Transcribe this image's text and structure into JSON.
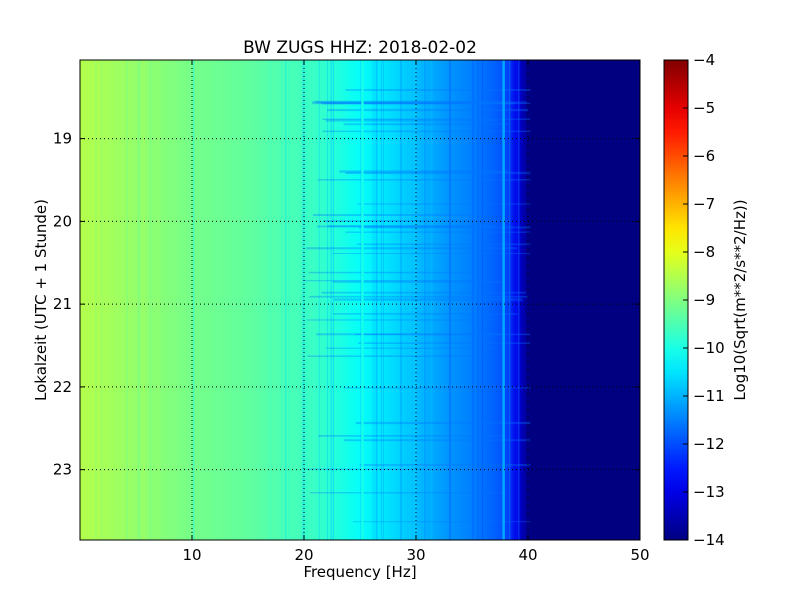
{
  "chart_data": {
    "type": "heatmap",
    "title": "BW ZUGS HHZ: 2018-02-02",
    "xlabel": "Frequency [Hz]",
    "ylabel": "Lokalzeit (UTC + 1 Stunde)",
    "xlim": [
      0,
      50
    ],
    "ylim_hours": [
      18.05,
      23.85
    ],
    "y_inverted": true,
    "x_ticks": [
      10,
      20,
      30,
      40,
      50
    ],
    "y_ticks": [
      19,
      20,
      21,
      22,
      23
    ],
    "grid": true,
    "colormap": "jet",
    "colorbar": {
      "label": "Log10(Sqrt(m**2/s**2/Hz))",
      "min": -14,
      "max": -4,
      "ticks": [
        -4,
        -5,
        -6,
        -7,
        -8,
        -9,
        -10,
        -11,
        -12,
        -13,
        -14
      ]
    },
    "spectrum_profile": {
      "frequency_hz": [
        0,
        2,
        5,
        10,
        15,
        20,
        22,
        25,
        28,
        30,
        33,
        35,
        37,
        38,
        39,
        40,
        45,
        50
      ],
      "log10_amplitude": [
        -8.5,
        -8.6,
        -8.8,
        -9.1,
        -9.3,
        -9.6,
        -9.8,
        -10.2,
        -10.6,
        -10.9,
        -11.3,
        -11.5,
        -11.8,
        -12.0,
        -13.0,
        -13.9,
        -14.0,
        -14.0
      ]
    },
    "features": [
      {
        "frequency_hz": 25.2,
        "log10_amplitude": -10.0,
        "kind": "persistent line"
      },
      {
        "frequency_hz": 37.8,
        "log10_amplitude": -11.0,
        "kind": "persistent line"
      }
    ]
  }
}
